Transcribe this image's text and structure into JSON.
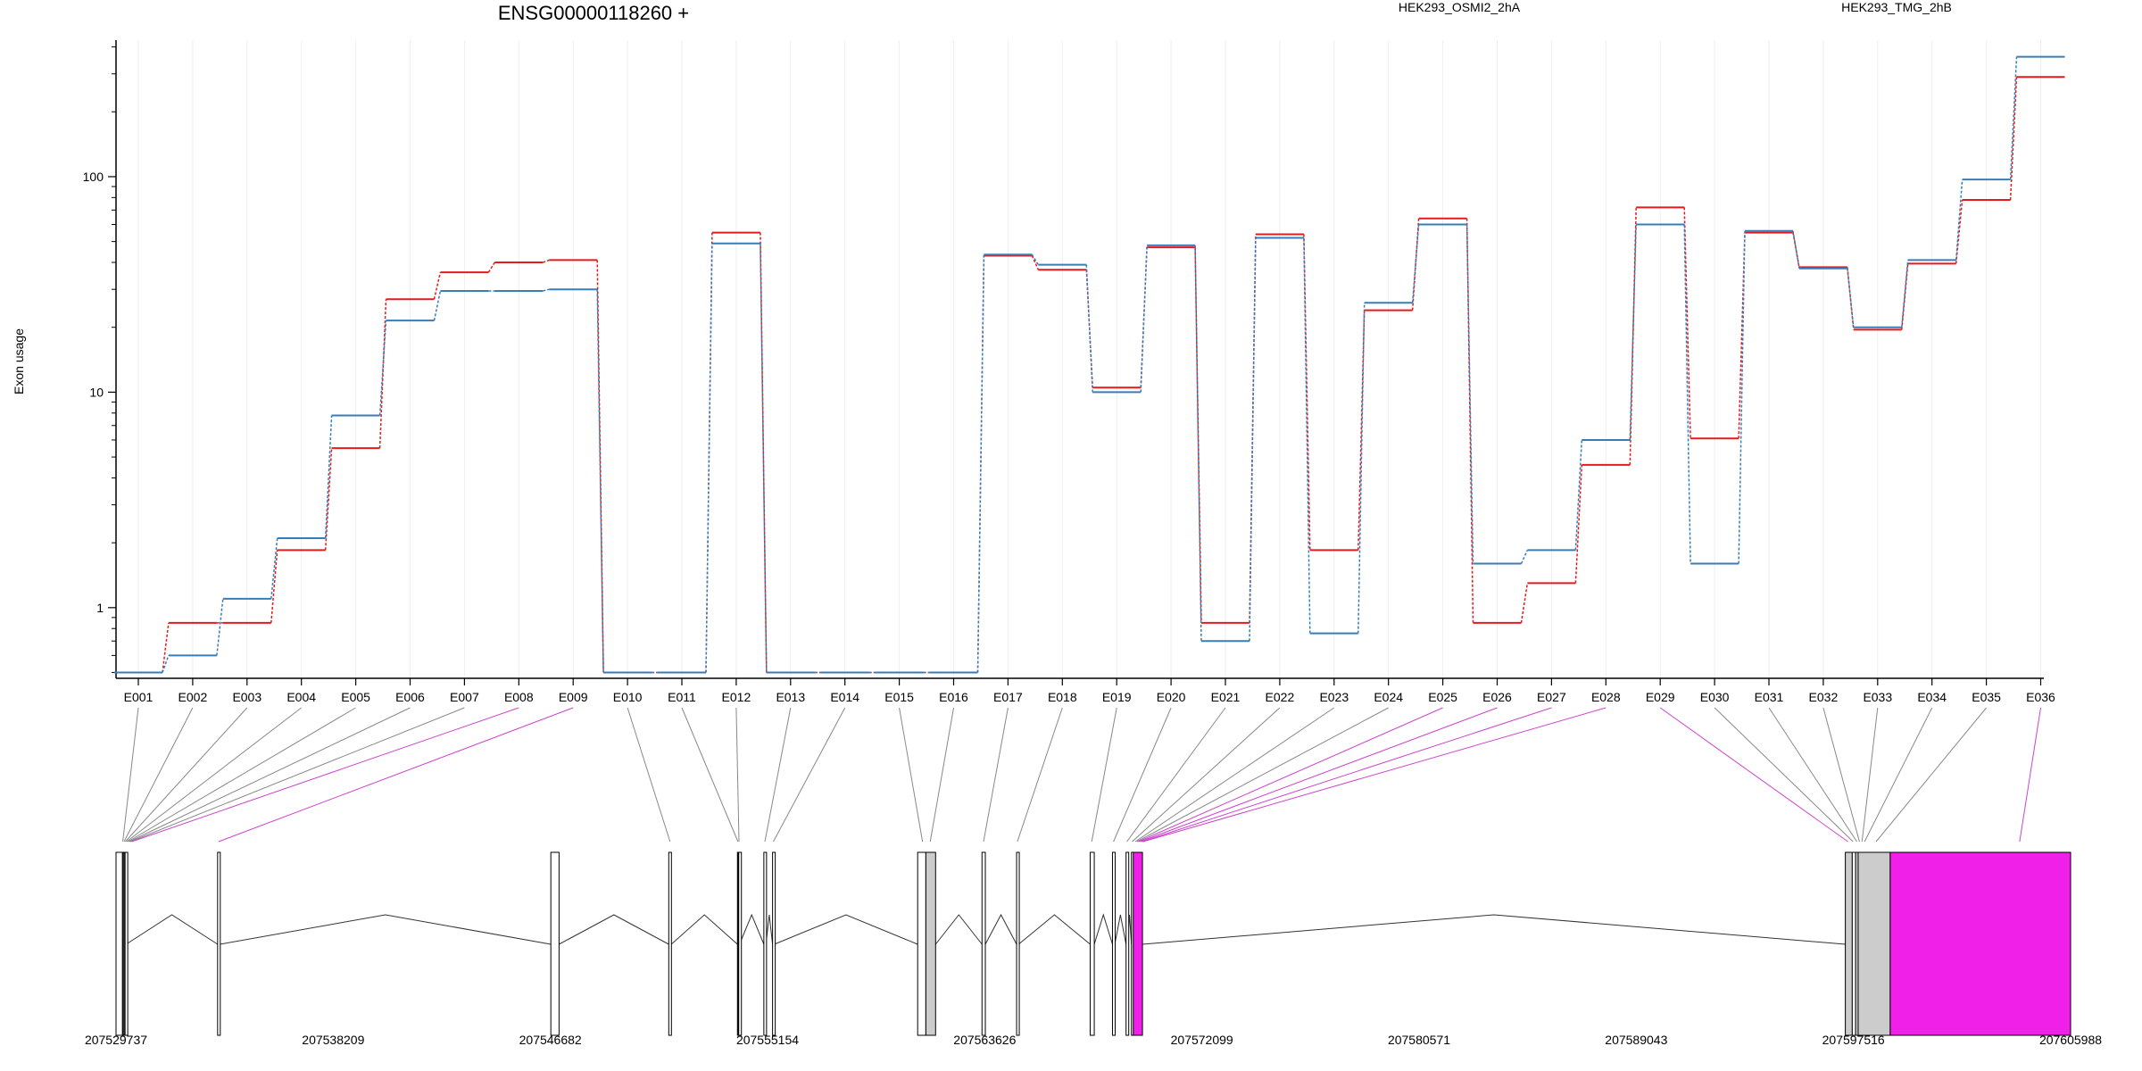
{
  "chart_data": {
    "type": "line",
    "title": "ENSG00000118260 +",
    "ylabel": "Exon usage",
    "yscale": "log",
    "ylim": [
      0.47,
      430
    ],
    "y_ticks": [
      {
        "v": 1,
        "label": "1"
      },
      {
        "v": 10,
        "label": "10"
      },
      {
        "v": 100,
        "label": "100"
      }
    ],
    "grid": "vertical",
    "legend_position": "top",
    "categories": [
      "E001",
      "E002",
      "E003",
      "E004",
      "E005",
      "E006",
      "E007",
      "E008",
      "E009",
      "E010",
      "E011",
      "E012",
      "E013",
      "E014",
      "E015",
      "E016",
      "E017",
      "E018",
      "E019",
      "E020",
      "E021",
      "E022",
      "E023",
      "E024",
      "E025",
      "E026",
      "E027",
      "E028",
      "E029",
      "E030",
      "E031",
      "E032",
      "E033",
      "E034",
      "E035",
      "E036"
    ],
    "series": [
      {
        "name": "HEK293_OSMI2_2hA",
        "color": "#e41a1c",
        "values": [
          0.5,
          0.85,
          0.85,
          1.85,
          5.5,
          27,
          36,
          40,
          41,
          0.5,
          0.5,
          55,
          0.5,
          0.5,
          0.5,
          0.5,
          43,
          37,
          10.5,
          47,
          0.85,
          54,
          1.85,
          24,
          64,
          0.85,
          1.3,
          4.6,
          72,
          6.1,
          55,
          38,
          19.5,
          39.5,
          78,
          290
        ]
      },
      {
        "name": "HEK293_TMG_2hB",
        "color": "#377eb8",
        "values": [
          0.5,
          0.6,
          1.1,
          2.1,
          7.8,
          21.5,
          29.5,
          29.5,
          30,
          0.5,
          0.5,
          49,
          0.5,
          0.5,
          0.5,
          0.5,
          43.5,
          39,
          10,
          48,
          0.7,
          52,
          0.76,
          26,
          60,
          1.6,
          1.85,
          6,
          60,
          1.6,
          56,
          37.5,
          20,
          41,
          97,
          360
        ]
      }
    ],
    "gene_model": {
      "genomic_range": [
        207529737,
        207605988
      ],
      "coordinate_labels": [
        "207529737",
        "207538209",
        "207546682",
        "207555154",
        "207563626",
        "207572099",
        "207580571",
        "207589043",
        "207597516",
        "207605988"
      ],
      "highlight_color": "#f020e8",
      "feature_color": "#cccccc"
    }
  }
}
